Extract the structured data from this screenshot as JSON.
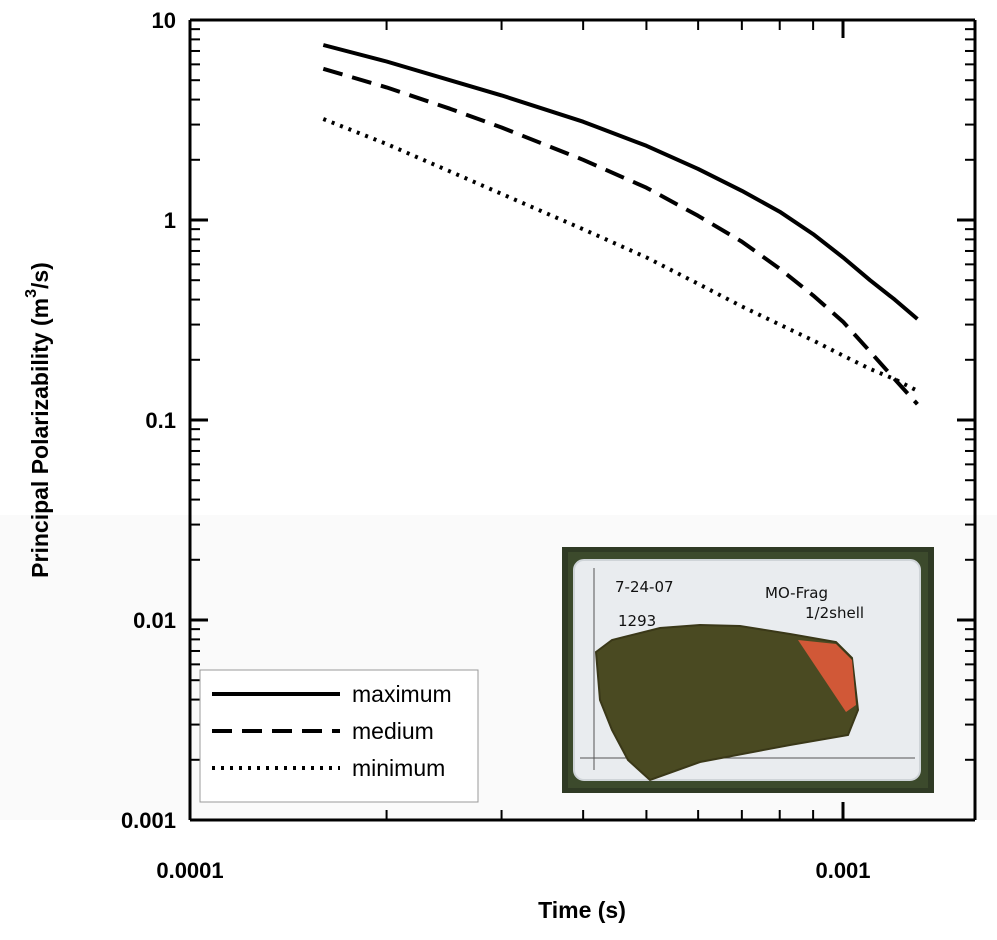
{
  "chart_data": {
    "type": "line",
    "xlabel": "Time (s)",
    "ylabel": "Principal Polarizability (m",
    "ylabel_sup": "3",
    "ylabel_end": "/s)",
    "x_scale": "log",
    "y_scale": "log",
    "xlim": [
      0.0001,
      0.0016
    ],
    "ylim": [
      0.001,
      10
    ],
    "x_tick_labels": [
      {
        "value": 0.0001,
        "label": "0.0001"
      },
      {
        "value": 0.001,
        "label": "0.001"
      }
    ],
    "y_tick_labels": [
      {
        "value": 10,
        "label": "10"
      },
      {
        "value": 1,
        "label": "1"
      },
      {
        "value": 0.1,
        "label": "0.1"
      },
      {
        "value": 0.01,
        "label": "0.01"
      },
      {
        "value": 0.001,
        "label": "0.001"
      }
    ],
    "legend_position": "bottom-left",
    "series": [
      {
        "name": "maximum",
        "style": "solid",
        "x": [
          0.00016,
          0.0002,
          0.00025,
          0.0003,
          0.0004,
          0.0005,
          0.0006,
          0.0007,
          0.0008,
          0.0009,
          0.001,
          0.0011,
          0.0012,
          0.0013
        ],
        "y": [
          7.5,
          6.2,
          5.0,
          4.2,
          3.1,
          2.35,
          1.8,
          1.4,
          1.1,
          0.85,
          0.65,
          0.5,
          0.4,
          0.32
        ]
      },
      {
        "name": "medium",
        "style": "dashed",
        "x": [
          0.00016,
          0.0002,
          0.00025,
          0.0003,
          0.0004,
          0.0005,
          0.0006,
          0.0007,
          0.0008,
          0.0009,
          0.001,
          0.0011,
          0.0012,
          0.0013
        ],
        "y": [
          5.7,
          4.6,
          3.6,
          2.9,
          2.0,
          1.45,
          1.05,
          0.78,
          0.57,
          0.42,
          0.31,
          0.22,
          0.16,
          0.12
        ]
      },
      {
        "name": "minimum",
        "style": "dotted",
        "x": [
          0.00016,
          0.0002,
          0.00025,
          0.0003,
          0.0004,
          0.0005,
          0.0006,
          0.0007,
          0.0008,
          0.0009,
          0.001,
          0.0011,
          0.0012,
          0.0013
        ],
        "y": [
          3.2,
          2.4,
          1.75,
          1.35,
          0.9,
          0.65,
          0.48,
          0.37,
          0.3,
          0.25,
          0.21,
          0.18,
          0.16,
          0.14
        ]
      }
    ]
  },
  "inset_photo": {
    "date_text": "7-24-07",
    "id_text": "1293",
    "label_line1": "MO-Frag",
    "label_line2": "1/2shell",
    "colors": {
      "grass": "#2f3a24",
      "board": "#e9ecef",
      "fragment": "#4a4a22",
      "paint": "#e05a3a"
    }
  }
}
